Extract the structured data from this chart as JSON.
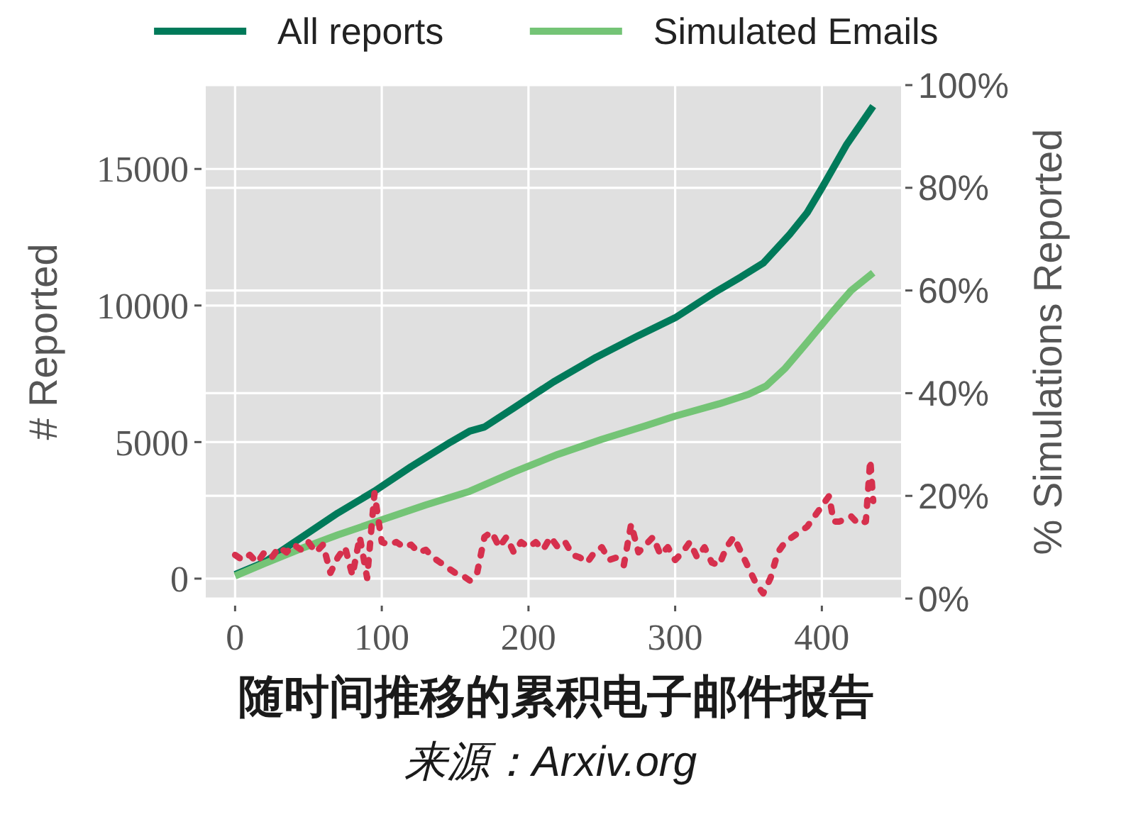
{
  "chart_data": {
    "type": "line",
    "title": "随时间推移的累积电子邮件报告",
    "ylabel": "# Reported",
    "y2label": "% Simulations Reported",
    "annotations": [
      "来源：Arxiv.org"
    ],
    "xlim": [
      -20,
      454
    ],
    "xticks": [
      0,
      100,
      200,
      300,
      400
    ],
    "ylim": [
      -730,
      18070
    ],
    "yticks": [
      0,
      5000,
      10000,
      15000
    ],
    "y2lim": [
      0,
      100
    ],
    "y2ticks": [
      {
        "value": 0,
        "label": "0%"
      },
      {
        "value": 20,
        "label": "20%"
      },
      {
        "value": 40,
        "label": "40%"
      },
      {
        "value": 60,
        "label": "60%"
      },
      {
        "value": 80,
        "label": "80%"
      },
      {
        "value": 100,
        "label": "100%"
      }
    ],
    "grid": true,
    "legend": "top",
    "line_style": "solid",
    "series": [
      {
        "name": "All reports",
        "color": "#007a5a",
        "x": [
          0,
          20,
          45,
          70,
          95,
          120,
          147,
          160,
          170,
          190,
          217,
          246,
          275,
          300,
          326,
          345,
          360,
          378,
          390,
          400,
          417,
          435
        ],
        "values": [
          150,
          600,
          1500,
          2400,
          3200,
          4100,
          5000,
          5400,
          5550,
          6250,
          7200,
          8100,
          8900,
          9550,
          10450,
          11050,
          11550,
          12600,
          13400,
          14300,
          15900,
          17300
        ]
      },
      {
        "name": "Simulated Emails",
        "color": "#74c476",
        "x": [
          0,
          20,
          45,
          70,
          100,
          130,
          160,
          190,
          220,
          250,
          280,
          300,
          330,
          350,
          362,
          375,
          390,
          407,
          420,
          435
        ],
        "values": [
          100,
          550,
          1100,
          1600,
          2150,
          2700,
          3200,
          3900,
          4550,
          5100,
          5600,
          5950,
          6400,
          6750,
          7050,
          7700,
          8650,
          9750,
          10550,
          11200
        ]
      },
      {
        "color": "#d6304d",
        "axis": "y2",
        "line_style": "dashed",
        "x": [
          0,
          5,
          10,
          15,
          20,
          25,
          30,
          35,
          40,
          45,
          50,
          55,
          60,
          65,
          70,
          75,
          80,
          85,
          90,
          95,
          100,
          105,
          110,
          115,
          120,
          125,
          130,
          135,
          140,
          145,
          150,
          155,
          160,
          165,
          170,
          175,
          180,
          185,
          190,
          195,
          200,
          205,
          210,
          215,
          220,
          225,
          230,
          235,
          240,
          245,
          250,
          255,
          260,
          265,
          270,
          275,
          280,
          285,
          290,
          295,
          300,
          305,
          310,
          315,
          320,
          325,
          330,
          335,
          340,
          345,
          350,
          355,
          360,
          365,
          370,
          375,
          380,
          385,
          390,
          395,
          400,
          405,
          408,
          412,
          416,
          420,
          425,
          430,
          433,
          435
        ],
        "values": [
          8.5,
          7.5,
          8.5,
          7,
          9,
          8,
          10,
          9,
          10.5,
          9.5,
          11,
          9,
          10.5,
          5,
          8,
          10,
          4.5,
          12,
          4,
          20.5,
          11,
          10.5,
          11,
          10,
          10.5,
          9,
          9.5,
          8,
          7,
          6,
          5,
          4.5,
          3.5,
          5,
          12,
          13,
          10,
          12,
          9,
          11,
          10,
          11,
          9.5,
          12,
          10,
          11,
          8.5,
          8,
          7,
          9,
          10,
          7.5,
          8,
          6.5,
          14.5,
          9,
          10.5,
          12,
          8.5,
          10,
          7.5,
          9,
          11,
          8,
          10,
          7,
          6.5,
          10,
          12,
          9,
          6,
          3,
          1,
          4,
          9,
          11,
          12,
          13,
          14,
          16,
          18,
          20,
          15,
          15,
          15.5,
          16,
          14.5,
          15,
          27,
          19
        ]
      }
    ]
  }
}
